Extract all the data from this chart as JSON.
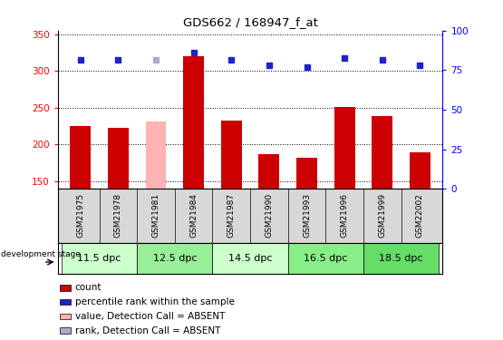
{
  "title": "GDS662 / 168947_f_at",
  "samples": [
    "GSM21975",
    "GSM21978",
    "GSM21981",
    "GSM21984",
    "GSM21987",
    "GSM21990",
    "GSM21993",
    "GSM21996",
    "GSM21999",
    "GSM22002"
  ],
  "bar_values": [
    225,
    223,
    232,
    320,
    233,
    187,
    182,
    251,
    239,
    189
  ],
  "bar_colors": [
    "#cc0000",
    "#cc0000",
    "#ffb3b3",
    "#cc0000",
    "#cc0000",
    "#cc0000",
    "#cc0000",
    "#cc0000",
    "#cc0000",
    "#cc0000"
  ],
  "rank_values": [
    315,
    315,
    315,
    325,
    315,
    308,
    305,
    318,
    315,
    308
  ],
  "rank_colors": [
    "#2222cc",
    "#2222cc",
    "#aaaacc",
    "#2222cc",
    "#2222cc",
    "#2222cc",
    "#2222cc",
    "#2222cc",
    "#2222cc",
    "#2222cc"
  ],
  "ylim_left": [
    140,
    355
  ],
  "ylim_right": [
    0,
    100
  ],
  "yticks_left": [
    150,
    200,
    250,
    300,
    350
  ],
  "yticks_right": [
    0,
    25,
    50,
    75,
    100
  ],
  "stage_groups": [
    {
      "start": 0,
      "end": 1,
      "label": "11.5 dpc",
      "color": "#ccffcc"
    },
    {
      "start": 2,
      "end": 3,
      "label": "12.5 dpc",
      "color": "#99ee99"
    },
    {
      "start": 4,
      "end": 5,
      "label": "14.5 dpc",
      "color": "#ccffcc"
    },
    {
      "start": 6,
      "end": 7,
      "label": "16.5 dpc",
      "color": "#88ee88"
    },
    {
      "start": 8,
      "end": 9,
      "label": "18.5 dpc",
      "color": "#66dd66"
    }
  ],
  "legend_items": [
    {
      "label": "count",
      "color": "#cc0000"
    },
    {
      "label": "percentile rank within the sample",
      "color": "#2222cc"
    },
    {
      "label": "value, Detection Call = ABSENT",
      "color": "#ffb3b3"
    },
    {
      "label": "rank, Detection Call = ABSENT",
      "color": "#aaaacc"
    }
  ],
  "bar_width": 0.55
}
